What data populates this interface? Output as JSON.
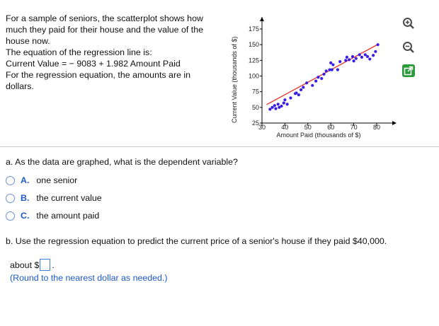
{
  "intro": {
    "line1": "For a sample of seniors, the scatterplot shows how",
    "line2": "much they paid for their house and the value of the",
    "line3": "house now.",
    "line4": "The equation of the regression line is:",
    "line5": "Current Value = − 9083 + 1.982 Amount Paid",
    "line6": "For the regression equation, the amounts are in",
    "line7": "dollars."
  },
  "chart_data": {
    "type": "scatter",
    "xlabel": "Amount Paid (thousands of $)",
    "ylabel": "Current Value (thousands of $)",
    "xlim": [
      30,
      80
    ],
    "ylim": [
      25,
      175
    ],
    "x_ticks": [
      "30",
      "40",
      "50",
      "60",
      "70",
      "80"
    ],
    "y_ticks": [
      "25",
      "50",
      "75",
      "100",
      "125",
      "150",
      "175"
    ],
    "point_color": "#3b1ee6",
    "line_color": "#e5332a",
    "regression_line": {
      "intercept": -9.083,
      "slope": 1.982
    },
    "points": [
      {
        "x": 33.5,
        "y": 47
      },
      {
        "x": 34.5,
        "y": 50
      },
      {
        "x": 35.5,
        "y": 53
      },
      {
        "x": 36,
        "y": 48
      },
      {
        "x": 37,
        "y": 55
      },
      {
        "x": 37.5,
        "y": 50
      },
      {
        "x": 38.5,
        "y": 52
      },
      {
        "x": 39.5,
        "y": 57
      },
      {
        "x": 40,
        "y": 62
      },
      {
        "x": 41,
        "y": 55
      },
      {
        "x": 42.5,
        "y": 65
      },
      {
        "x": 44.5,
        "y": 72
      },
      {
        "x": 45,
        "y": 73
      },
      {
        "x": 46,
        "y": 70
      },
      {
        "x": 47,
        "y": 78
      },
      {
        "x": 48,
        "y": 82
      },
      {
        "x": 49.5,
        "y": 89
      },
      {
        "x": 52,
        "y": 85
      },
      {
        "x": 53.5,
        "y": 92
      },
      {
        "x": 54.5,
        "y": 98
      },
      {
        "x": 56,
        "y": 96
      },
      {
        "x": 57,
        "y": 103
      },
      {
        "x": 58,
        "y": 108
      },
      {
        "x": 59.5,
        "y": 110
      },
      {
        "x": 60.5,
        "y": 110
      },
      {
        "x": 61,
        "y": 118
      },
      {
        "x": 60,
        "y": 121
      },
      {
        "x": 63,
        "y": 110
      },
      {
        "x": 64,
        "y": 123
      },
      {
        "x": 66.5,
        "y": 125
      },
      {
        "x": 67,
        "y": 130
      },
      {
        "x": 68,
        "y": 126
      },
      {
        "x": 69.5,
        "y": 131
      },
      {
        "x": 70,
        "y": 124
      },
      {
        "x": 71,
        "y": 128
      },
      {
        "x": 72.5,
        "y": 134
      },
      {
        "x": 73.5,
        "y": 130
      },
      {
        "x": 75,
        "y": 134
      },
      {
        "x": 76,
        "y": 131
      },
      {
        "x": 77,
        "y": 127
      },
      {
        "x": 78.5,
        "y": 133
      },
      {
        "x": 79.5,
        "y": 139
      },
      {
        "x": 80.5,
        "y": 150
      }
    ]
  },
  "tools": {
    "zoom_in_icon": "magnifier-plus-icon",
    "zoom_out_icon": "magnifier-minus-icon",
    "popout_icon": "open-external-icon"
  },
  "part_a": {
    "question": "a. As the data are graphed, what is the dependent variable?",
    "options": [
      {
        "letter": "A.",
        "text": "one senior"
      },
      {
        "letter": "B.",
        "text": "the current value"
      },
      {
        "letter": "C.",
        "text": "the amount paid"
      }
    ]
  },
  "part_b": {
    "question": "b. Use the regression equation to predict the current price of a senior's house if they paid $40,000.",
    "answer_prefix": "about $",
    "answer_value": "",
    "answer_suffix": ".",
    "note": "(Round to the nearest dollar as needed.)"
  }
}
